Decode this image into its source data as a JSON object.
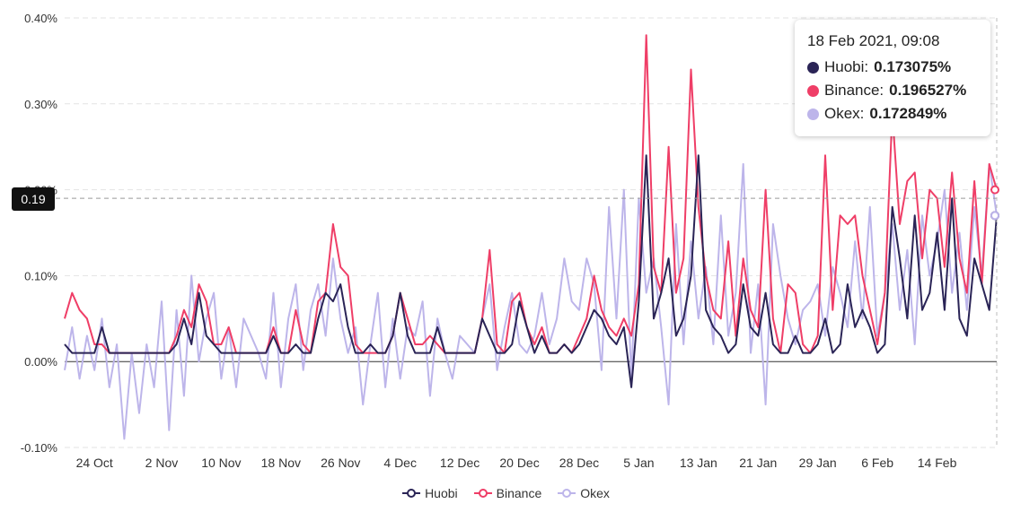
{
  "chart_data": {
    "type": "line",
    "title": "",
    "xlabel": "",
    "ylabel": "",
    "ylim": [
      -0.1,
      0.4
    ],
    "yticks": [
      "0.40%",
      "0.30%",
      "0.20%",
      "0.10%",
      "0.00%",
      "-0.10%"
    ],
    "ytick_values": [
      0.4,
      0.3,
      0.2,
      0.1,
      0.0,
      -0.1
    ],
    "x_range_days": [
      0,
      125
    ],
    "xticks": [
      {
        "label": "24 Oct",
        "day": 4
      },
      {
        "label": "2 Nov",
        "day": 13
      },
      {
        "label": "10 Nov",
        "day": 21
      },
      {
        "label": "18 Nov",
        "day": 29
      },
      {
        "label": "26 Nov",
        "day": 37
      },
      {
        "label": "4 Dec",
        "day": 45
      },
      {
        "label": "12 Dec",
        "day": 53
      },
      {
        "label": "20 Dec",
        "day": 61
      },
      {
        "label": "28 Dec",
        "day": 69
      },
      {
        "label": "5 Jan",
        "day": 77
      },
      {
        "label": "13 Jan",
        "day": 85
      },
      {
        "label": "21 Jan",
        "day": 93
      },
      {
        "label": "29 Jan",
        "day": 101
      },
      {
        "label": "6 Feb",
        "day": 109
      },
      {
        "label": "14 Feb",
        "day": 117
      }
    ],
    "crosshair_value": 0.19,
    "crosshair_label": "0.19",
    "series": [
      {
        "name": "Huobi",
        "color": "#2a2456",
        "days": [
          0,
          1,
          2,
          3,
          4,
          5,
          6,
          7,
          8,
          9,
          10,
          11,
          12,
          13,
          14,
          15,
          16,
          17,
          18,
          19,
          20,
          21,
          22,
          23,
          24,
          25,
          26,
          27,
          28,
          29,
          30,
          31,
          32,
          33,
          34,
          35,
          36,
          37,
          38,
          39,
          40,
          41,
          42,
          43,
          44,
          45,
          46,
          47,
          48,
          49,
          50,
          51,
          52,
          53,
          54,
          55,
          56,
          57,
          58,
          59,
          60,
          61,
          62,
          63,
          64,
          65,
          66,
          67,
          68,
          69,
          70,
          71,
          72,
          73,
          74,
          75,
          76,
          77,
          78,
          79,
          80,
          81,
          82,
          83,
          84,
          85,
          86,
          87,
          88,
          89,
          90,
          91,
          92,
          93,
          94,
          95,
          96,
          97,
          98,
          99,
          100,
          101,
          102,
          103,
          104,
          105,
          106,
          107,
          108,
          109,
          110,
          111,
          112,
          113,
          114,
          115,
          116,
          117,
          118,
          119,
          120,
          121,
          122,
          123,
          124,
          125
        ],
        "values": [
          0.02,
          0.01,
          0.01,
          0.01,
          0.01,
          0.04,
          0.01,
          0.01,
          0.01,
          0.01,
          0.01,
          0.01,
          0.01,
          0.01,
          0.01,
          0.02,
          0.05,
          0.02,
          0.08,
          0.03,
          0.02,
          0.01,
          0.01,
          0.01,
          0.01,
          0.01,
          0.01,
          0.01,
          0.03,
          0.01,
          0.01,
          0.02,
          0.01,
          0.01,
          0.05,
          0.08,
          0.07,
          0.09,
          0.04,
          0.01,
          0.01,
          0.02,
          0.01,
          0.01,
          0.03,
          0.08,
          0.03,
          0.01,
          0.01,
          0.01,
          0.04,
          0.01,
          0.01,
          0.01,
          0.01,
          0.01,
          0.05,
          0.03,
          0.01,
          0.01,
          0.02,
          0.07,
          0.04,
          0.01,
          0.03,
          0.01,
          0.01,
          0.02,
          0.01,
          0.02,
          0.04,
          0.06,
          0.05,
          0.03,
          0.02,
          0.04,
          -0.03,
          0.07,
          0.24,
          0.05,
          0.08,
          0.12,
          0.03,
          0.05,
          0.1,
          0.24,
          0.06,
          0.04,
          0.03,
          0.01,
          0.02,
          0.09,
          0.04,
          0.03,
          0.08,
          0.02,
          0.01,
          0.01,
          0.03,
          0.01,
          0.01,
          0.02,
          0.05,
          0.01,
          0.02,
          0.09,
          0.04,
          0.06,
          0.04,
          0.01,
          0.02,
          0.18,
          0.12,
          0.05,
          0.17,
          0.06,
          0.08,
          0.15,
          0.06,
          0.19,
          0.05,
          0.03,
          0.12,
          0.09,
          0.06,
          0.17
        ]
      },
      {
        "name": "Binance",
        "color": "#ef3e67",
        "days": [
          0,
          1,
          2,
          3,
          4,
          5,
          6,
          7,
          8,
          9,
          10,
          11,
          12,
          13,
          14,
          15,
          16,
          17,
          18,
          19,
          20,
          21,
          22,
          23,
          24,
          25,
          26,
          27,
          28,
          29,
          30,
          31,
          32,
          33,
          34,
          35,
          36,
          37,
          38,
          39,
          40,
          41,
          42,
          43,
          44,
          45,
          46,
          47,
          48,
          49,
          50,
          51,
          52,
          53,
          54,
          55,
          56,
          57,
          58,
          59,
          60,
          61,
          62,
          63,
          64,
          65,
          66,
          67,
          68,
          69,
          70,
          71,
          72,
          73,
          74,
          75,
          76,
          77,
          78,
          79,
          80,
          81,
          82,
          83,
          84,
          85,
          86,
          87,
          88,
          89,
          90,
          91,
          92,
          93,
          94,
          95,
          96,
          97,
          98,
          99,
          100,
          101,
          102,
          103,
          104,
          105,
          106,
          107,
          108,
          109,
          110,
          111,
          112,
          113,
          114,
          115,
          116,
          117,
          118,
          119,
          120,
          121,
          122,
          123,
          124,
          125
        ],
        "values": [
          0.05,
          0.08,
          0.06,
          0.05,
          0.02,
          0.02,
          0.01,
          0.01,
          0.01,
          0.01,
          0.01,
          0.01,
          0.01,
          0.01,
          0.01,
          0.03,
          0.06,
          0.04,
          0.09,
          0.07,
          0.02,
          0.02,
          0.04,
          0.01,
          0.01,
          0.01,
          0.01,
          0.01,
          0.04,
          0.01,
          0.01,
          0.06,
          0.02,
          0.01,
          0.07,
          0.08,
          0.16,
          0.11,
          0.1,
          0.02,
          0.01,
          0.01,
          0.01,
          0.01,
          0.03,
          0.08,
          0.05,
          0.02,
          0.02,
          0.03,
          0.02,
          0.01,
          0.01,
          0.01,
          0.01,
          0.01,
          0.05,
          0.13,
          0.02,
          0.01,
          0.07,
          0.08,
          0.04,
          0.02,
          0.04,
          0.01,
          0.01,
          0.02,
          0.01,
          0.03,
          0.05,
          0.1,
          0.06,
          0.04,
          0.03,
          0.05,
          0.03,
          0.09,
          0.38,
          0.11,
          0.08,
          0.25,
          0.08,
          0.12,
          0.34,
          0.18,
          0.1,
          0.06,
          0.05,
          0.14,
          0.03,
          0.12,
          0.06,
          0.04,
          0.2,
          0.05,
          0.01,
          0.09,
          0.08,
          0.02,
          0.01,
          0.03,
          0.24,
          0.06,
          0.17,
          0.16,
          0.17,
          0.1,
          0.06,
          0.02,
          0.08,
          0.29,
          0.16,
          0.21,
          0.22,
          0.12,
          0.2,
          0.19,
          0.11,
          0.22,
          0.12,
          0.08,
          0.21,
          0.09,
          0.23,
          0.2
        ]
      },
      {
        "name": "Okex",
        "color": "#bdb5ea",
        "days": [
          0,
          1,
          2,
          3,
          4,
          5,
          6,
          7,
          8,
          9,
          10,
          11,
          12,
          13,
          14,
          15,
          16,
          17,
          18,
          19,
          20,
          21,
          22,
          23,
          24,
          25,
          26,
          27,
          28,
          29,
          30,
          31,
          32,
          33,
          34,
          35,
          36,
          37,
          38,
          39,
          40,
          41,
          42,
          43,
          44,
          45,
          46,
          47,
          48,
          49,
          50,
          51,
          52,
          53,
          54,
          55,
          56,
          57,
          58,
          59,
          60,
          61,
          62,
          63,
          64,
          65,
          66,
          67,
          68,
          69,
          70,
          71,
          72,
          73,
          74,
          75,
          76,
          77,
          78,
          79,
          80,
          81,
          82,
          83,
          84,
          85,
          86,
          87,
          88,
          89,
          90,
          91,
          92,
          93,
          94,
          95,
          96,
          97,
          98,
          99,
          100,
          101,
          102,
          103,
          104,
          105,
          106,
          107,
          108,
          109,
          110,
          111,
          112,
          113,
          114,
          115,
          116,
          117,
          118,
          119,
          120,
          121,
          122,
          123,
          124,
          125
        ],
        "values": [
          -0.01,
          0.04,
          -0.02,
          0.03,
          -0.01,
          0.05,
          -0.03,
          0.02,
          -0.09,
          0.01,
          -0.06,
          0.02,
          -0.03,
          0.07,
          -0.08,
          0.06,
          -0.04,
          0.1,
          0.0,
          0.05,
          0.08,
          -0.02,
          0.04,
          -0.03,
          0.05,
          0.03,
          0.01,
          -0.02,
          0.08,
          -0.03,
          0.05,
          0.09,
          -0.01,
          0.06,
          0.09,
          0.03,
          0.12,
          0.05,
          0.01,
          0.04,
          -0.05,
          0.02,
          0.08,
          -0.03,
          0.05,
          -0.02,
          0.04,
          0.03,
          0.07,
          -0.04,
          0.05,
          0.01,
          -0.02,
          0.03,
          0.02,
          0.01,
          0.05,
          0.09,
          -0.01,
          0.04,
          0.08,
          0.02,
          0.01,
          0.03,
          0.08,
          0.02,
          0.05,
          0.12,
          0.07,
          0.06,
          0.12,
          0.09,
          -0.01,
          0.18,
          0.05,
          0.2,
          -0.02,
          0.19,
          0.08,
          0.12,
          0.04,
          -0.05,
          0.16,
          0.02,
          0.14,
          0.05,
          0.11,
          0.02,
          0.17,
          0.03,
          0.08,
          0.23,
          0.01,
          0.09,
          -0.05,
          0.16,
          0.1,
          0.05,
          0.02,
          0.06,
          0.07,
          0.09,
          0.03,
          0.11,
          0.08,
          0.04,
          0.14,
          0.05,
          0.18,
          0.03,
          0.08,
          0.16,
          0.06,
          0.13,
          0.02,
          0.17,
          0.1,
          0.14,
          0.2,
          0.08,
          0.15,
          0.06,
          0.18,
          0.1,
          0.23,
          0.17
        ]
      }
    ]
  },
  "tooltip": {
    "title": "18 Feb 2021, 09:08",
    "rows": [
      {
        "label": "Huobi:",
        "value": "0.173075%",
        "color": "#2a2456"
      },
      {
        "label": "Binance:",
        "value": "0.196527%",
        "color": "#ef3e67"
      },
      {
        "label": "Okex:",
        "value": "0.172849%",
        "color": "#bdb5ea"
      }
    ]
  },
  "legend": [
    {
      "label": "Huobi",
      "color": "#2a2456"
    },
    {
      "label": "Binance",
      "color": "#ef3e67"
    },
    {
      "label": "Okex",
      "color": "#bdb5ea"
    }
  ]
}
